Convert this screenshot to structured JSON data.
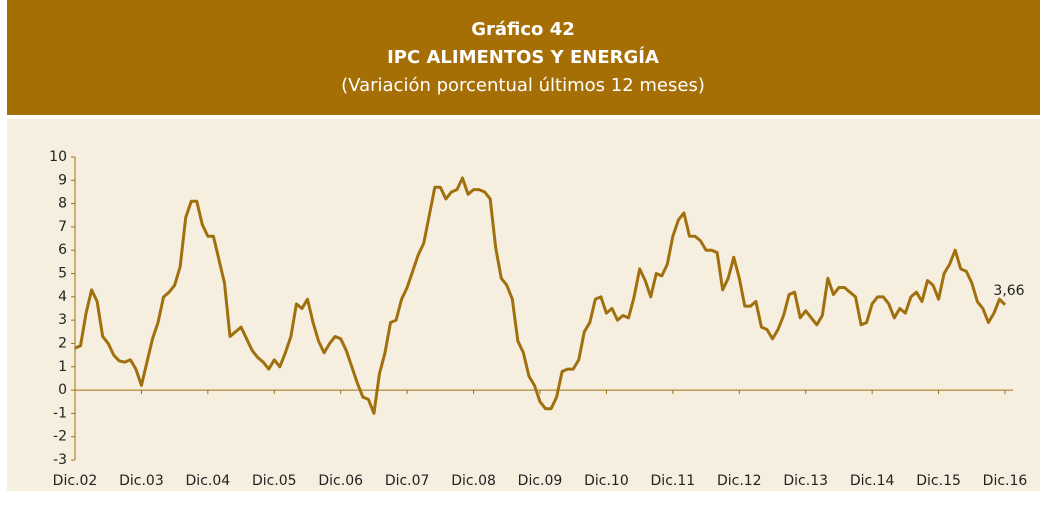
{
  "chart_data": {
    "type": "line",
    "title": "Gráfico 42",
    "subtitle": "IPC ALIMENTOS Y ENERGÍA",
    "note": "(Variación porcentual últimos 12 meses)",
    "categories": [
      "Dic.02",
      null,
      null,
      null,
      null,
      null,
      null,
      null,
      null,
      null,
      null,
      null,
      "Dic.03",
      null,
      null,
      null,
      null,
      null,
      null,
      null,
      null,
      null,
      null,
      null,
      "Dic.04",
      null,
      null,
      null,
      null,
      null,
      null,
      null,
      null,
      null,
      null,
      null,
      "Dic.05",
      null,
      null,
      null,
      null,
      null,
      null,
      null,
      null,
      null,
      null,
      null,
      "Dic.06",
      null,
      null,
      null,
      null,
      null,
      null,
      null,
      null,
      null,
      null,
      null,
      "Dic.07",
      null,
      null,
      null,
      null,
      null,
      null,
      null,
      null,
      null,
      null,
      null,
      "Dic.08",
      null,
      null,
      null,
      null,
      null,
      null,
      null,
      null,
      null,
      null,
      null,
      "Dic.09",
      null,
      null,
      null,
      null,
      null,
      null,
      null,
      null,
      null,
      null,
      null,
      "Dic.10",
      null,
      null,
      null,
      null,
      null,
      null,
      null,
      null,
      null,
      null,
      null,
      "Dic.11",
      null,
      null,
      null,
      null,
      null,
      null,
      null,
      null,
      null,
      null,
      null,
      "Dic.12",
      null,
      null,
      null,
      null,
      null,
      null,
      null,
      null,
      null,
      null,
      null,
      "Dic.13",
      null,
      null,
      null,
      null,
      null,
      null,
      null,
      null,
      null,
      null,
      null,
      "Dic.14",
      null,
      null,
      null,
      null,
      null,
      null,
      null,
      null,
      null,
      null,
      null,
      "Dic.15",
      null,
      null,
      null,
      null,
      null,
      null,
      null,
      null,
      null,
      null,
      null,
      "Dic.16"
    ],
    "series": [
      {
        "color": "#a0700f",
        "values": [
          1.8,
          1.9,
          3.3,
          4.3,
          3.8,
          2.3,
          2.0,
          1.5,
          1.25,
          1.2,
          1.3,
          0.9,
          0.2,
          1.2,
          2.2,
          2.9,
          4.0,
          4.2,
          4.5,
          5.3,
          7.4,
          8.1,
          8.1,
          7.1,
          6.6,
          6.6,
          5.6,
          4.6,
          2.3,
          2.5,
          2.7,
          2.2,
          1.7,
          1.4,
          1.2,
          0.9,
          1.3,
          1.0,
          1.6,
          2.3,
          3.7,
          3.5,
          3.9,
          2.9,
          2.1,
          1.6,
          2.0,
          2.3,
          2.2,
          1.7,
          1.0,
          0.3,
          -0.3,
          -0.4,
          -1.0,
          0.7,
          1.6,
          2.9,
          3.0,
          3.9,
          4.4,
          5.1,
          5.8,
          6.3,
          7.5,
          8.7,
          8.7,
          8.2,
          8.5,
          8.6,
          9.1,
          8.4,
          8.6,
          8.6,
          8.5,
          8.2,
          6.1,
          4.8,
          4.5,
          3.9,
          2.1,
          1.6,
          0.6,
          0.2,
          -0.5,
          -0.8,
          -0.8,
          -0.3,
          0.8,
          0.9,
          0.9,
          1.3,
          2.5,
          2.9,
          3.9,
          4.0,
          3.3,
          3.5,
          3.0,
          3.2,
          3.1,
          4.0,
          5.2,
          4.7,
          4.0,
          5.0,
          4.9,
          5.4,
          6.6,
          7.3,
          7.6,
          6.6,
          6.6,
          6.4,
          6.0,
          6.0,
          5.9,
          4.3,
          4.8,
          5.7,
          4.8,
          3.6,
          3.6,
          3.8,
          2.7,
          2.6,
          2.2,
          2.6,
          3.2,
          4.1,
          4.2,
          3.1,
          3.4,
          3.1,
          2.8,
          3.2,
          4.8,
          4.1,
          4.4,
          4.4,
          4.2,
          4.0,
          2.8,
          2.9,
          3.7,
          4.0,
          4.0,
          3.7,
          3.1,
          3.5,
          3.3,
          4.0,
          4.2,
          3.8,
          4.7,
          4.5,
          3.9,
          5.0,
          5.4,
          6.0,
          5.2,
          5.1,
          4.6,
          3.8,
          3.5,
          2.9,
          3.3,
          3.9,
          3.66
        ],
        "value_labels": [
          null,
          null,
          null,
          null,
          null,
          null,
          null,
          null,
          null,
          null,
          null,
          null,
          null,
          null,
          null,
          null,
          null,
          null,
          null,
          null,
          null,
          null,
          null,
          null,
          null,
          null,
          null,
          null,
          null,
          null,
          null,
          null,
          null,
          null,
          null,
          null,
          null,
          null,
          null,
          null,
          null,
          null,
          null,
          null,
          null,
          null,
          null,
          null,
          null,
          null,
          null,
          null,
          null,
          null,
          null,
          null,
          null,
          null,
          null,
          null,
          null,
          null,
          null,
          null,
          null,
          null,
          null,
          null,
          null,
          null,
          null,
          null,
          null,
          null,
          null,
          null,
          null,
          null,
          null,
          null,
          null,
          null,
          null,
          null,
          null,
          null,
          null,
          null,
          null,
          null,
          null,
          null,
          null,
          null,
          null,
          null,
          null,
          null,
          null,
          null,
          null,
          null,
          null,
          null,
          null,
          null,
          null,
          null,
          null,
          null,
          null,
          null,
          null,
          null,
          null,
          null,
          null,
          null,
          null,
          null,
          null,
          null,
          null,
          null,
          null,
          null,
          null,
          null,
          null,
          null,
          null,
          null,
          null,
          null,
          null,
          null,
          null,
          null,
          null,
          null,
          null,
          null,
          null,
          null,
          null,
          null,
          null,
          null,
          null,
          null,
          null,
          null,
          null,
          null,
          null,
          null,
          null,
          null,
          null,
          null,
          null,
          null,
          null,
          null,
          null,
          null,
          null,
          null,
          "3,66"
        ]
      }
    ],
    "ylim": [
      -3,
      10
    ],
    "yticks": [
      -3,
      -2,
      -1,
      0,
      1,
      2,
      3,
      4,
      5,
      6,
      7,
      8,
      9,
      10
    ],
    "grid": false
  }
}
